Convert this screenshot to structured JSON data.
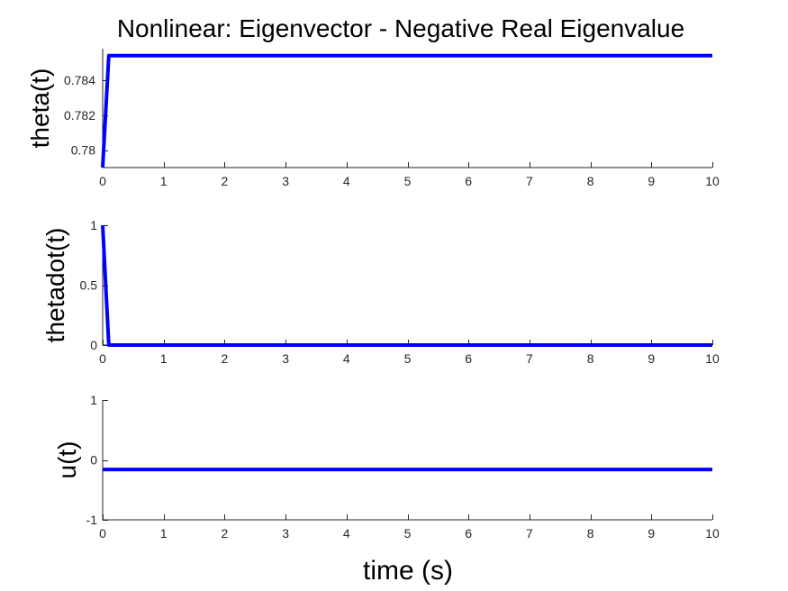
{
  "title": "Nonlinear: Eigenvector - Negative Real Eigenvalue",
  "xlabel": "time (s)",
  "series_color": "#0000ff",
  "chart_data": [
    {
      "type": "line",
      "ylabel": "theta(t)",
      "xlim": [
        0,
        10
      ],
      "ylim": [
        0.779,
        0.7858
      ],
      "xticks": [
        0,
        1,
        2,
        3,
        4,
        5,
        6,
        7,
        8,
        9,
        10
      ],
      "xtick_labels": [
        "0",
        "1",
        "2",
        "3",
        "4",
        "5",
        "6",
        "7",
        "8",
        "9",
        "10"
      ],
      "yticks": [
        0.78,
        0.782,
        0.784
      ],
      "ytick_labels": [
        "0.78",
        "0.782",
        "0.784"
      ],
      "x": [
        0,
        0.1,
        10
      ],
      "y": [
        0.779,
        0.7854,
        0.7854
      ]
    },
    {
      "type": "line",
      "ylabel": "thetadot(t)",
      "xlim": [
        0,
        10
      ],
      "ylim": [
        0,
        1
      ],
      "xticks": [
        0,
        1,
        2,
        3,
        4,
        5,
        6,
        7,
        8,
        9,
        10
      ],
      "xtick_labels": [
        "0",
        "1",
        "2",
        "3",
        "4",
        "5",
        "6",
        "7",
        "8",
        "9",
        "10"
      ],
      "yticks": [
        0,
        0.5,
        1
      ],
      "ytick_labels": [
        "0",
        "0.5",
        "1"
      ],
      "x": [
        0,
        0.1,
        10
      ],
      "y": [
        1,
        0,
        0
      ]
    },
    {
      "type": "line",
      "ylabel": "u(t)",
      "xlim": [
        0,
        10
      ],
      "ylim": [
        -1,
        1
      ],
      "xticks": [
        0,
        1,
        2,
        3,
        4,
        5,
        6,
        7,
        8,
        9,
        10
      ],
      "xtick_labels": [
        "0",
        "1",
        "2",
        "3",
        "4",
        "5",
        "6",
        "7",
        "8",
        "9",
        "10"
      ],
      "yticks": [
        -1,
        0,
        1
      ],
      "ytick_labels": [
        "-1",
        "0",
        "1"
      ],
      "x": [
        0,
        10
      ],
      "y": [
        -0.16,
        -0.16
      ]
    }
  ]
}
